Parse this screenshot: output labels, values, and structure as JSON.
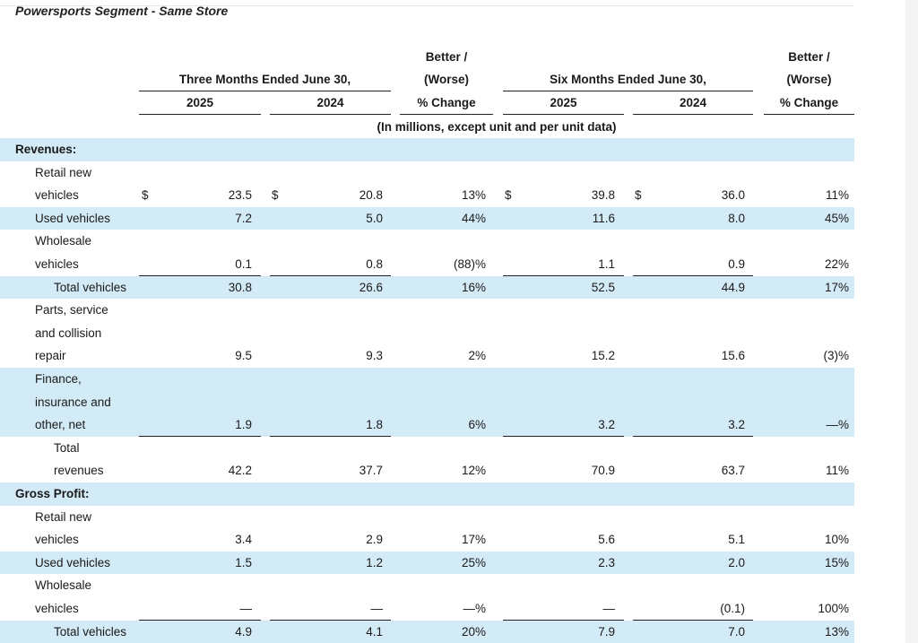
{
  "title": "Powersports Segment - Same Store",
  "header": {
    "three_months": "Three Months Ended June 30,",
    "six_months": "Six Months Ended June 30,",
    "better_1": "Better /",
    "better_2": "(Worse)",
    "better_3": "% Change",
    "year_2025": "2025",
    "year_2024": "2024",
    "units_note": "(In millions, except unit and per unit data)"
  },
  "currency_symbol": "$",
  "rows": [
    {
      "type": "section",
      "label": "Revenues:",
      "blue": true
    },
    {
      "type": "label",
      "label": "Retail new",
      "blue": false
    },
    {
      "type": "data",
      "label": "vehicles",
      "q25": "23.5",
      "q24": "20.8",
      "qchg": "13%",
      "s25": "39.8",
      "s24": "36.0",
      "schg": "11%",
      "dollar": true,
      "blue": false
    },
    {
      "type": "data",
      "label": "Used vehicles",
      "q25": "7.2",
      "q24": "5.0",
      "qchg": "44%",
      "s25": "11.6",
      "s24": "8.0",
      "schg": "45%",
      "blue": true
    },
    {
      "type": "label",
      "label": "Wholesale",
      "blue": false
    },
    {
      "type": "data",
      "label": "vehicles",
      "q25": "0.1",
      "q24": "0.8",
      "qchg": "(88)%",
      "s25": "1.1",
      "s24": "0.9",
      "schg": "22%",
      "blue": false,
      "underline": true
    },
    {
      "type": "data",
      "label": "Total vehicles",
      "q25": "30.8",
      "q24": "26.6",
      "qchg": "16%",
      "s25": "52.5",
      "s24": "44.9",
      "schg": "17%",
      "blue": true,
      "indent": true
    },
    {
      "type": "label",
      "label": "Parts, service",
      "blue": false
    },
    {
      "type": "label",
      "label": "and collision",
      "blue": false
    },
    {
      "type": "data",
      "label": "repair",
      "q25": "9.5",
      "q24": "9.3",
      "qchg": "2%",
      "s25": "15.2",
      "s24": "15.6",
      "schg": "(3)%",
      "blue": false
    },
    {
      "type": "label",
      "label": "Finance,",
      "blue": true
    },
    {
      "type": "label",
      "label": "insurance and",
      "blue": true
    },
    {
      "type": "data",
      "label": "other, net",
      "q25": "1.9",
      "q24": "1.8",
      "qchg": "6%",
      "s25": "3.2",
      "s24": "3.2",
      "schg": "—%",
      "blue": true,
      "underline": true
    },
    {
      "type": "label",
      "label": "Total",
      "blue": false,
      "indent": true
    },
    {
      "type": "data",
      "label": "revenues",
      "q25": "42.2",
      "q24": "37.7",
      "qchg": "12%",
      "s25": "70.9",
      "s24": "63.7",
      "schg": "11%",
      "blue": false,
      "indent": true
    },
    {
      "type": "section",
      "label": "Gross Profit:",
      "blue": true
    },
    {
      "type": "label",
      "label": "Retail new",
      "blue": false
    },
    {
      "type": "data",
      "label": "vehicles",
      "q25": "3.4",
      "q24": "2.9",
      "qchg": "17%",
      "s25": "5.6",
      "s24": "5.1",
      "schg": "10%",
      "blue": false
    },
    {
      "type": "data",
      "label": "Used vehicles",
      "q25": "1.5",
      "q24": "1.2",
      "qchg": "25%",
      "s25": "2.3",
      "s24": "2.0",
      "schg": "15%",
      "blue": true
    },
    {
      "type": "label",
      "label": "Wholesale",
      "blue": false
    },
    {
      "type": "data",
      "label": "vehicles",
      "q25": "—",
      "q24": "—",
      "qchg": "—%",
      "s25": "—",
      "s24": "(0.1)",
      "schg": "100%",
      "blue": false,
      "underline": true
    },
    {
      "type": "data",
      "label": "Total vehicles",
      "q25": "4.9",
      "q24": "4.1",
      "qchg": "20%",
      "s25": "7.9",
      "s24": "7.0",
      "schg": "13%",
      "blue": true,
      "indent": true
    }
  ]
}
